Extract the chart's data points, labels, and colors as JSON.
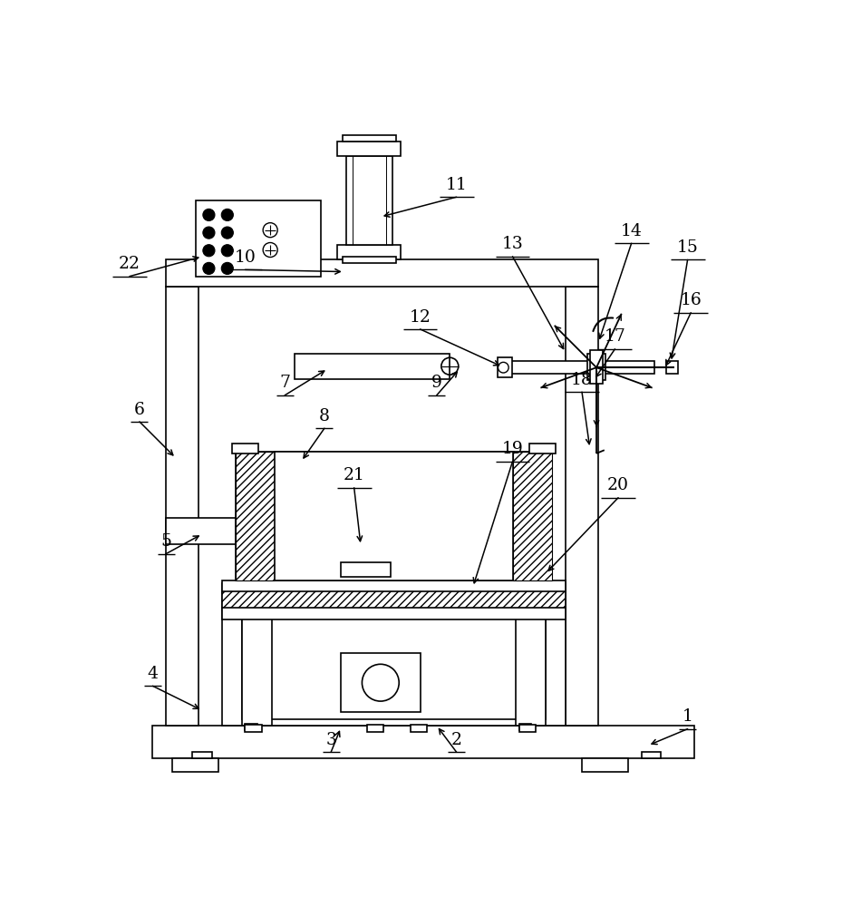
{
  "bg_color": "#ffffff",
  "line_color": "#000000",
  "line_width": 1.2,
  "fig_width": 9.4,
  "fig_height": 10.0,
  "labels": {
    "1": [
      0.88,
      0.09,
      0.82,
      0.065
    ],
    "2": [
      0.53,
      0.055,
      0.5,
      0.095
    ],
    "3": [
      0.34,
      0.055,
      0.355,
      0.092
    ],
    "4": [
      0.07,
      0.155,
      0.145,
      0.118
    ],
    "5": [
      0.09,
      0.355,
      0.145,
      0.385
    ],
    "6": [
      0.05,
      0.555,
      0.105,
      0.5
    ],
    "7": [
      0.27,
      0.595,
      0.335,
      0.635
    ],
    "8": [
      0.33,
      0.545,
      0.295,
      0.495
    ],
    "9": [
      0.5,
      0.595,
      0.535,
      0.635
    ],
    "10": [
      0.21,
      0.785,
      0.36,
      0.782
    ],
    "11": [
      0.53,
      0.895,
      0.415,
      0.865
    ],
    "12": [
      0.475,
      0.695,
      0.6,
      0.638
    ],
    "13": [
      0.615,
      0.805,
      0.695,
      0.66
    ],
    "14": [
      0.795,
      0.825,
      0.745,
      0.675
    ],
    "15": [
      0.88,
      0.8,
      0.855,
      0.645
    ],
    "16": [
      0.885,
      0.72,
      0.845,
      0.635
    ],
    "17": [
      0.77,
      0.665,
      0.738,
      0.618
    ],
    "18": [
      0.72,
      0.6,
      0.732,
      0.515
    ],
    "19": [
      0.615,
      0.495,
      0.555,
      0.305
    ],
    "20": [
      0.775,
      0.44,
      0.665,
      0.325
    ],
    "21": [
      0.375,
      0.455,
      0.385,
      0.368
    ],
    "22": [
      0.035,
      0.775,
      0.145,
      0.805
    ]
  }
}
